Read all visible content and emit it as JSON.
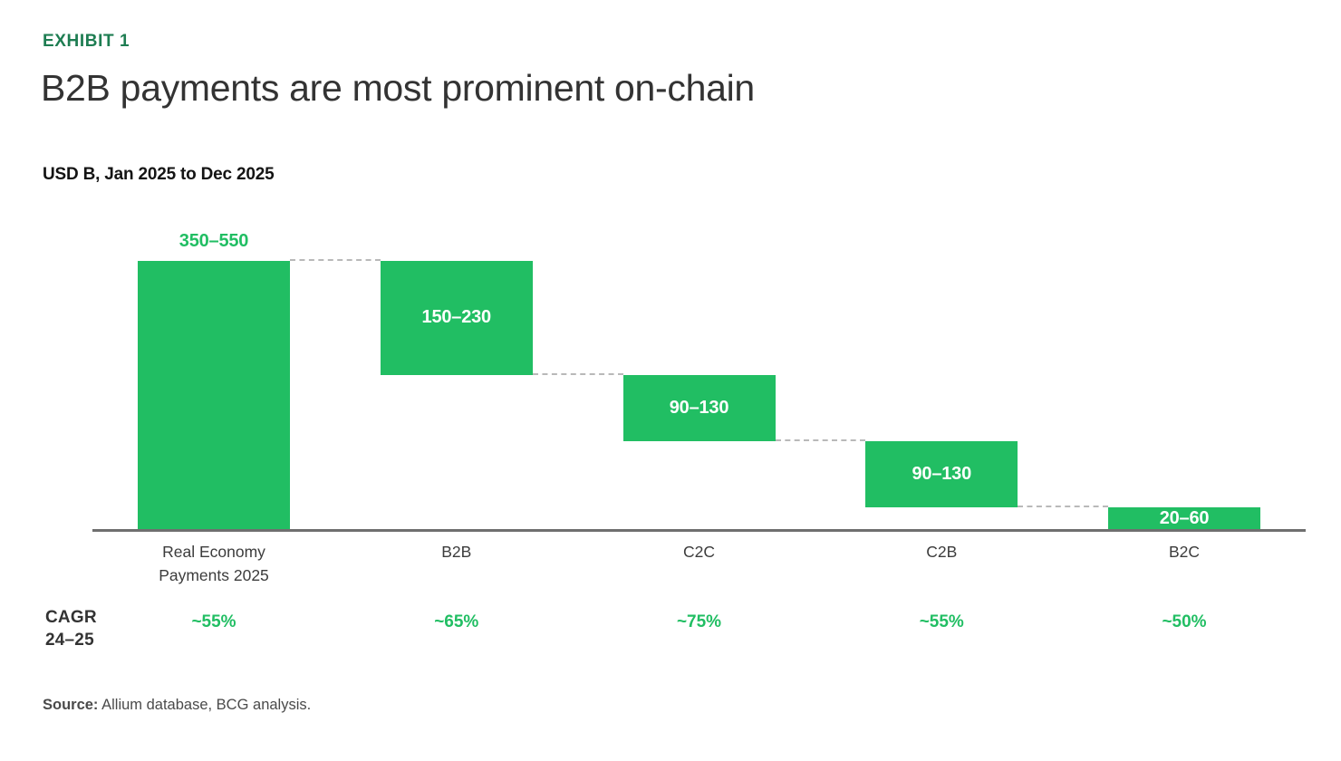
{
  "header": {
    "exhibit_label": "EXHIBIT 1",
    "title": "B2B payments are most prominent on-chain",
    "subtitle": "USD B, Jan 2025 to Dec 2025"
  },
  "cagr_row": {
    "label_line1": "CAGR",
    "label_line2": "24–25"
  },
  "source": {
    "label": "Source:",
    "text": " Allium database, BCG analysis."
  },
  "colors": {
    "bar_green": "#21BE63",
    "dark_green": "#1E7D52",
    "bar_label_white": "#FFFFFF",
    "axis_gray": "#6F6F6F",
    "connector_gray": "#B9B9B9",
    "text_dark": "#333333"
  },
  "chart_data": {
    "type": "bar",
    "subtype": "waterfall",
    "title": "B2B payments are most prominent on-chain",
    "unit_label": "USD B, Jan 2025 to Dec 2025",
    "categories": [
      "Real Economy Payments 2025",
      "B2B",
      "C2C",
      "C2B",
      "B2C"
    ],
    "ylim": [
      0,
      450
    ],
    "grid": false,
    "connector_style": "dashed",
    "bars": [
      {
        "category": "Real Economy Payments 2025",
        "category_lines": [
          "Real Economy",
          "Payments 2025"
        ],
        "label": "350–550",
        "range": [
          350,
          550
        ],
        "level_start": 0,
        "level_end": 450,
        "label_position": "above",
        "cagr": "~55%"
      },
      {
        "category": "B2B",
        "category_lines": [
          "B2B"
        ],
        "label": "150–230",
        "range": [
          150,
          230
        ],
        "level_start": 260,
        "level_end": 450,
        "label_position": "inside",
        "cagr": "~65%"
      },
      {
        "category": "C2C",
        "category_lines": [
          "C2C"
        ],
        "label": "90–130",
        "range": [
          90,
          130
        ],
        "level_start": 150,
        "level_end": 260,
        "label_position": "inside",
        "cagr": "~75%"
      },
      {
        "category": "C2B",
        "category_lines": [
          "C2B"
        ],
        "label": "90–130",
        "range": [
          90,
          130
        ],
        "level_start": 40,
        "level_end": 150,
        "label_position": "inside",
        "cagr": "~55%"
      },
      {
        "category": "B2C",
        "category_lines": [
          "B2C"
        ],
        "label": "20–60",
        "range": [
          20,
          60
        ],
        "level_start": 0,
        "level_end": 40,
        "label_position": "inside",
        "cagr": "~50%"
      }
    ]
  }
}
